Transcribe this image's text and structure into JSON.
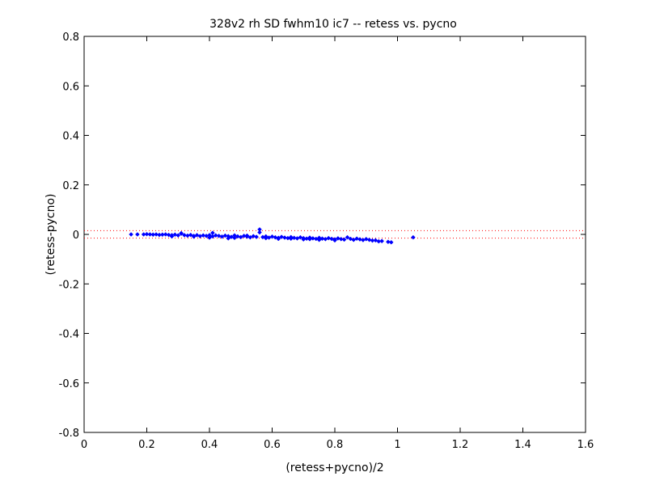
{
  "chart_data": {
    "type": "scatter",
    "title": "328v2 rh SD fwhm10 ic7 -- retess vs. pycno",
    "xlabel": "(retess+pycno)/2",
    "ylabel": "(retess-pycno)",
    "xlim": [
      0,
      1.6
    ],
    "ylim": [
      -0.8,
      0.8
    ],
    "xticks": [
      "0",
      "0.2",
      "0.4",
      "0.6",
      "0.8",
      "1",
      "1.2",
      "1.4",
      "1.6"
    ],
    "yticks": [
      "0.8",
      "0.6",
      "0.4",
      "0.2",
      "0",
      "-0.2",
      "-0.4",
      "-0.6",
      "-0.8"
    ],
    "grid": false,
    "marker_color": "#0000ff",
    "reference_lines": [
      {
        "y": 0.015,
        "style": "dotted",
        "color": "#ff0000"
      },
      {
        "y": -0.015,
        "style": "dotted",
        "color": "#ff0000"
      }
    ],
    "series": [
      {
        "x": [
          0.15,
          0.17,
          0.19,
          0.2,
          0.21,
          0.22,
          0.23,
          0.24,
          0.25,
          0.26,
          0.27,
          0.28,
          0.29,
          0.3,
          0.31,
          0.32,
          0.33,
          0.34,
          0.35,
          0.36,
          0.37,
          0.38,
          0.39,
          0.4,
          0.41,
          0.42,
          0.43,
          0.44,
          0.45,
          0.46,
          0.47,
          0.48,
          0.49,
          0.5,
          0.51,
          0.52,
          0.53,
          0.54,
          0.55,
          0.56,
          0.57,
          0.58,
          0.59,
          0.6,
          0.61,
          0.62,
          0.63,
          0.64,
          0.65,
          0.66,
          0.67,
          0.68,
          0.69,
          0.7,
          0.71,
          0.72,
          0.73,
          0.74,
          0.75,
          0.76,
          0.77,
          0.78,
          0.79,
          0.8,
          0.81,
          0.82,
          0.83,
          0.84,
          0.85,
          0.86,
          0.87,
          0.88,
          0.89,
          0.9,
          0.91,
          0.92,
          0.93,
          0.94,
          0.95,
          0.97,
          0.98,
          1.05,
          0.31,
          0.41,
          0.56,
          0.4,
          0.46,
          0.52,
          0.62,
          0.7,
          0.75,
          0.28,
          0.35,
          0.48,
          0.58,
          0.66,
          0.72,
          0.8
        ],
        "y": [
          0.0,
          0.0,
          0.0,
          0.001,
          0.0,
          -0.001,
          0.0,
          -0.002,
          -0.001,
          0.0,
          -0.002,
          -0.003,
          -0.001,
          -0.004,
          0.005,
          -0.003,
          -0.005,
          -0.002,
          -0.006,
          -0.003,
          -0.007,
          -0.004,
          -0.006,
          -0.003,
          -0.008,
          -0.004,
          -0.006,
          -0.009,
          -0.005,
          -0.007,
          -0.01,
          -0.004,
          -0.008,
          -0.011,
          -0.006,
          -0.009,
          -0.012,
          -0.007,
          -0.01,
          0.02,
          -0.011,
          -0.008,
          -0.013,
          -0.009,
          -0.012,
          -0.014,
          -0.01,
          -0.013,
          -0.015,
          -0.011,
          -0.014,
          -0.016,
          -0.012,
          -0.015,
          -0.017,
          -0.013,
          -0.016,
          -0.018,
          -0.014,
          -0.017,
          -0.019,
          -0.015,
          -0.018,
          -0.02,
          -0.016,
          -0.019,
          -0.021,
          -0.012,
          -0.018,
          -0.022,
          -0.017,
          -0.02,
          -0.023,
          -0.019,
          -0.022,
          -0.025,
          -0.024,
          -0.028,
          -0.027,
          -0.03,
          -0.032,
          -0.012,
          0.003,
          0.006,
          0.008,
          -0.013,
          -0.016,
          -0.005,
          -0.018,
          -0.02,
          -0.022,
          -0.008,
          -0.009,
          -0.014,
          -0.015,
          -0.017,
          -0.019,
          -0.024
        ]
      }
    ]
  }
}
